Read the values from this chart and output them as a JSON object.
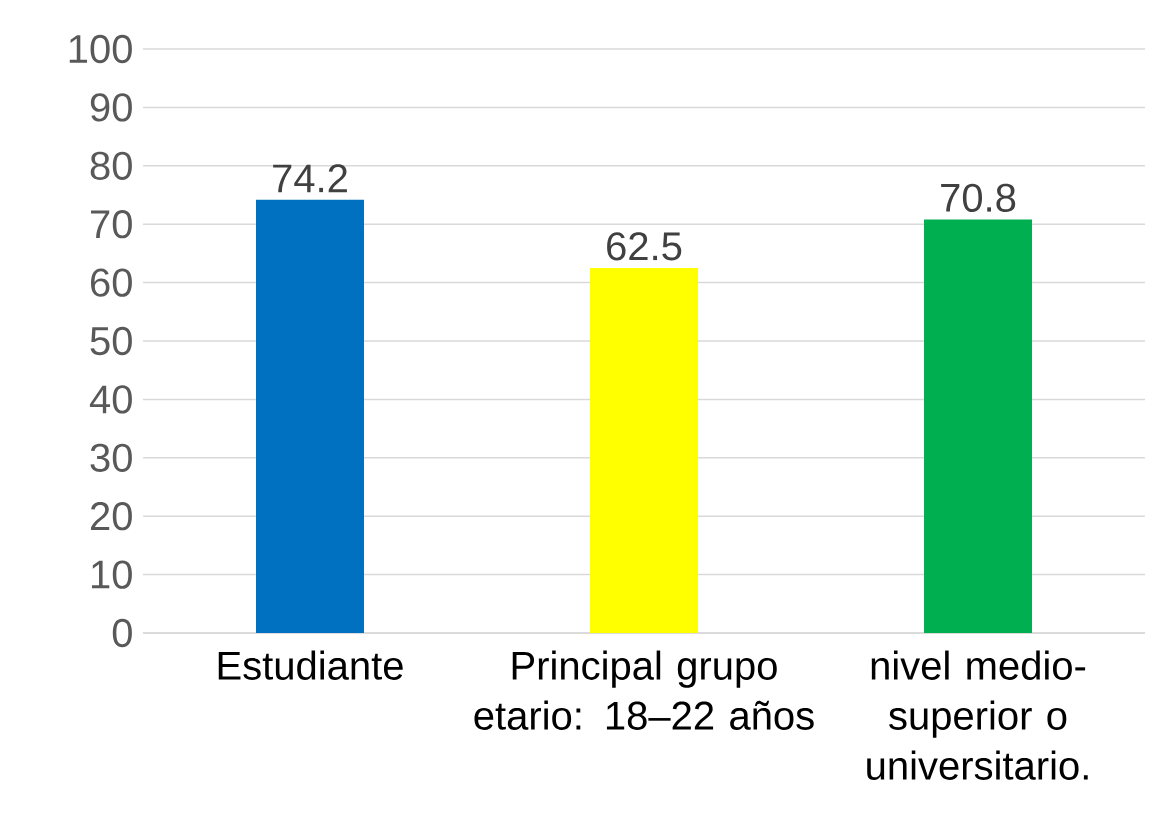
{
  "chart_data": {
    "type": "bar",
    "categories": [
      "Estudiante",
      "Principal grupo etario: 18–22 años",
      "nivel medio-superior o universitario."
    ],
    "values": [
      74.2,
      62.5,
      70.8
    ],
    "colors": [
      "#0070c0",
      "#ffff00",
      "#00b050"
    ],
    "ylim": [
      0,
      100
    ],
    "yticks": [
      0,
      10,
      20,
      30,
      40,
      50,
      60,
      70,
      80,
      90,
      100
    ],
    "grid": "y",
    "data_labels": true
  }
}
